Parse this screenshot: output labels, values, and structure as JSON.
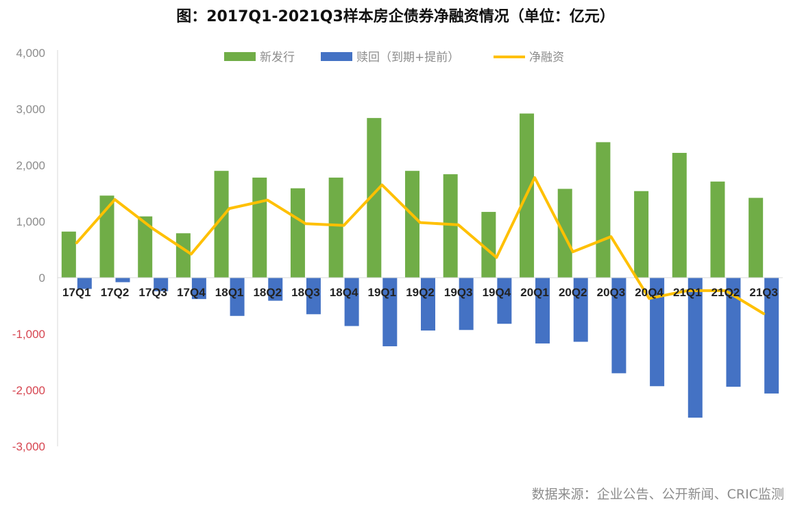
{
  "chart_data": {
    "type": "bar",
    "title": "图：2017Q1-2021Q3样本房企债券净融资情况（单位：亿元）",
    "categories": [
      "17Q1",
      "17Q2",
      "17Q3",
      "17Q4",
      "18Q1",
      "18Q2",
      "18Q3",
      "18Q4",
      "19Q1",
      "19Q2",
      "19Q3",
      "19Q4",
      "20Q1",
      "20Q2",
      "20Q3",
      "20Q4",
      "21Q1",
      "21Q2",
      "21Q3"
    ],
    "series": [
      {
        "name": "新发行",
        "kind": "bar",
        "color": "#70ad47",
        "values": [
          820,
          1460,
          1090,
          790,
          1900,
          1780,
          1590,
          1780,
          2840,
          1900,
          1840,
          1170,
          2920,
          1580,
          2410,
          1540,
          2220,
          1710,
          1420
        ]
      },
      {
        "name": "赎回（到期+提前）",
        "kind": "bar",
        "color": "#4472c4",
        "values": [
          -200,
          -80,
          -240,
          -380,
          -680,
          -410,
          -650,
          -860,
          -1220,
          -940,
          -930,
          -820,
          -1170,
          -1140,
          -1700,
          -1930,
          -2490,
          -1940,
          -2060
        ]
      },
      {
        "name": "净融资",
        "kind": "line",
        "color": "#ffc000",
        "values": [
          620,
          1390,
          870,
          420,
          1230,
          1380,
          960,
          930,
          1650,
          980,
          940,
          360,
          1780,
          460,
          730,
          -370,
          -230,
          -230,
          -640
        ]
      }
    ],
    "ylim": [
      -3000,
      4000
    ],
    "yticks": [
      4000,
      3000,
      2000,
      1000,
      0,
      -1000,
      -2000,
      -3000
    ],
    "ytick_labels": [
      "4,000",
      "3,000",
      "2,000",
      "1,000",
      "0",
      "-1,000",
      "-2,000",
      "-3,000"
    ],
    "legend_position": "top",
    "grid": false,
    "source": "数据来源：企业公告、公开新闻、CRIC监测"
  }
}
